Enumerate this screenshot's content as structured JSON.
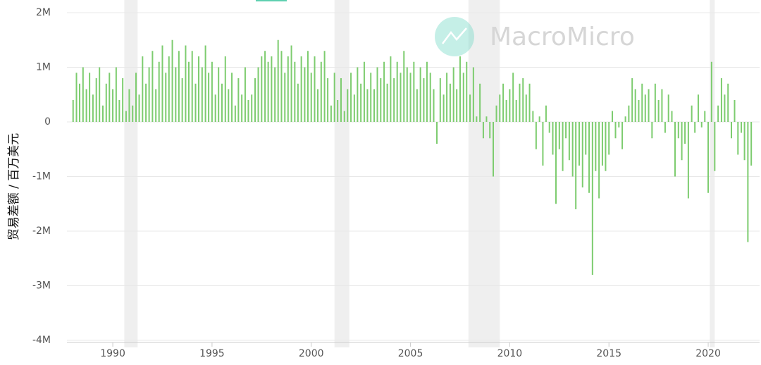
{
  "chart_data": {
    "type": "bar",
    "y_label": "贸易差额 / 百万美元",
    "watermark": "MacroMicro",
    "color": "#7dcc6f",
    "grid": true,
    "xlim": [
      1987.69,
      2022.59
    ],
    "xticks": [
      1990,
      1995,
      2000,
      2005,
      2010,
      2015,
      2020
    ],
    "ylim": [
      -4000000,
      2000000
    ],
    "yticks": [
      {
        "value": -4000000,
        "label": "-4M"
      },
      {
        "value": -3000000,
        "label": "-3M"
      },
      {
        "value": -2000000,
        "label": "-2M"
      },
      {
        "value": -1000000,
        "label": "-1M"
      },
      0,
      {
        "value": 1000000,
        "label": "1M"
      },
      {
        "value": 2000000,
        "label": "2M"
      }
    ],
    "shaded_periods": [
      [
        1990.58,
        1991.25
      ],
      [
        2001.17,
        2001.92
      ],
      [
        2007.92,
        2009.5
      ],
      [
        2020.08,
        2020.33
      ]
    ],
    "x": [
      1988.0,
      1988.17,
      1988.33,
      1988.5,
      1988.67,
      1988.83,
      1989.0,
      1989.17,
      1989.33,
      1989.5,
      1989.67,
      1989.83,
      1990.0,
      1990.17,
      1990.33,
      1990.5,
      1990.67,
      1990.83,
      1991.0,
      1991.17,
      1991.33,
      1991.5,
      1991.67,
      1991.83,
      1992.0,
      1992.17,
      1992.33,
      1992.5,
      1992.67,
      1992.83,
      1993.0,
      1993.17,
      1993.33,
      1993.5,
      1993.67,
      1993.83,
      1994.0,
      1994.17,
      1994.33,
      1994.5,
      1994.67,
      1994.83,
      1995.0,
      1995.17,
      1995.33,
      1995.5,
      1995.67,
      1995.83,
      1996.0,
      1996.17,
      1996.33,
      1996.5,
      1996.67,
      1996.83,
      1997.0,
      1997.17,
      1997.33,
      1997.5,
      1997.67,
      1997.83,
      1998.0,
      1998.17,
      1998.33,
      1998.5,
      1998.67,
      1998.83,
      1999.0,
      1999.17,
      1999.33,
      1999.5,
      1999.67,
      1999.83,
      2000.0,
      2000.17,
      2000.33,
      2000.5,
      2000.67,
      2000.83,
      2001.0,
      2001.17,
      2001.33,
      2001.5,
      2001.67,
      2001.83,
      2002.0,
      2002.17,
      2002.33,
      2002.5,
      2002.67,
      2002.83,
      2003.0,
      2003.17,
      2003.33,
      2003.5,
      2003.67,
      2003.83,
      2004.0,
      2004.17,
      2004.33,
      2004.5,
      2004.67,
      2004.83,
      2005.0,
      2005.17,
      2005.33,
      2005.5,
      2005.67,
      2005.83,
      2006.0,
      2006.17,
      2006.33,
      2006.5,
      2006.67,
      2006.83,
      2007.0,
      2007.17,
      2007.33,
      2007.5,
      2007.67,
      2007.83,
      2008.0,
      2008.17,
      2008.33,
      2008.5,
      2008.67,
      2008.83,
      2009.0,
      2009.17,
      2009.33,
      2009.5,
      2009.67,
      2009.83,
      2010.0,
      2010.17,
      2010.33,
      2010.5,
      2010.67,
      2010.83,
      2011.0,
      2011.17,
      2011.33,
      2011.5,
      2011.67,
      2011.83,
      2012.0,
      2012.17,
      2012.33,
      2012.5,
      2012.67,
      2012.83,
      2013.0,
      2013.17,
      2013.33,
      2013.5,
      2013.67,
      2013.83,
      2014.0,
      2014.17,
      2014.33,
      2014.5,
      2014.67,
      2014.83,
      2015.0,
      2015.17,
      2015.33,
      2015.5,
      2015.67,
      2015.83,
      2016.0,
      2016.17,
      2016.33,
      2016.5,
      2016.67,
      2016.83,
      2017.0,
      2017.17,
      2017.33,
      2017.5,
      2017.67,
      2017.83,
      2018.0,
      2018.17,
      2018.33,
      2018.5,
      2018.67,
      2018.83,
      2019.0,
      2019.17,
      2019.33,
      2019.5,
      2019.67,
      2019.83,
      2020.0,
      2020.17,
      2020.33,
      2020.5,
      2020.67,
      2020.83,
      2021.0,
      2021.17,
      2021.33,
      2021.5,
      2021.67,
      2021.83,
      2022.0,
      2022.17
    ],
    "values": [
      400000,
      900000,
      700000,
      1000000,
      600000,
      900000,
      500000,
      800000,
      1000000,
      300000,
      700000,
      900000,
      600000,
      1000000,
      400000,
      800000,
      200000,
      600000,
      300000,
      900000,
      500000,
      1200000,
      700000,
      1000000,
      1300000,
      600000,
      1100000,
      1400000,
      900000,
      1200000,
      1500000,
      1000000,
      1300000,
      800000,
      1400000,
      1100000,
      1300000,
      700000,
      1200000,
      1000000,
      1400000,
      900000,
      1100000,
      500000,
      1000000,
      700000,
      1200000,
      600000,
      900000,
      300000,
      800000,
      500000,
      1000000,
      400000,
      500000,
      800000,
      1000000,
      1200000,
      1300000,
      1100000,
      1200000,
      1000000,
      1500000,
      1300000,
      900000,
      1200000,
      1400000,
      1100000,
      700000,
      1200000,
      1000000,
      1300000,
      900000,
      1200000,
      600000,
      1100000,
      1300000,
      800000,
      300000,
      900000,
      400000,
      800000,
      200000,
      600000,
      900000,
      500000,
      1000000,
      700000,
      1100000,
      600000,
      900000,
      600000,
      1000000,
      800000,
      1100000,
      700000,
      1200000,
      800000,
      1100000,
      900000,
      1300000,
      1000000,
      900000,
      1100000,
      600000,
      1000000,
      800000,
      1100000,
      900000,
      600000,
      -400000,
      800000,
      500000,
      900000,
      700000,
      1000000,
      600000,
      1200000,
      900000,
      1100000,
      500000,
      1000000,
      100000,
      700000,
      -300000,
      100000,
      -300000,
      -1000000,
      300000,
      500000,
      700000,
      400000,
      600000,
      900000,
      400000,
      700000,
      800000,
      500000,
      700000,
      200000,
      -500000,
      100000,
      -800000,
      300000,
      -200000,
      -600000,
      -1500000,
      -500000,
      -900000,
      -300000,
      -700000,
      -1000000,
      -1600000,
      -800000,
      -1200000,
      -600000,
      -1300000,
      -2800000,
      -900000,
      -1400000,
      -800000,
      -900000,
      -600000,
      200000,
      -300000,
      -100000,
      -500000,
      100000,
      300000,
      800000,
      600000,
      400000,
      700000,
      500000,
      600000,
      -300000,
      700000,
      400000,
      600000,
      -200000,
      500000,
      200000,
      -1000000,
      -300000,
      -700000,
      -400000,
      -1400000,
      300000,
      -200000,
      500000,
      -100000,
      200000,
      -1300000,
      1100000,
      -900000,
      300000,
      800000,
      500000,
      700000,
      -300000,
      400000,
      -600000,
      -200000,
      -700000,
      -2200000,
      -800000
    ]
  }
}
